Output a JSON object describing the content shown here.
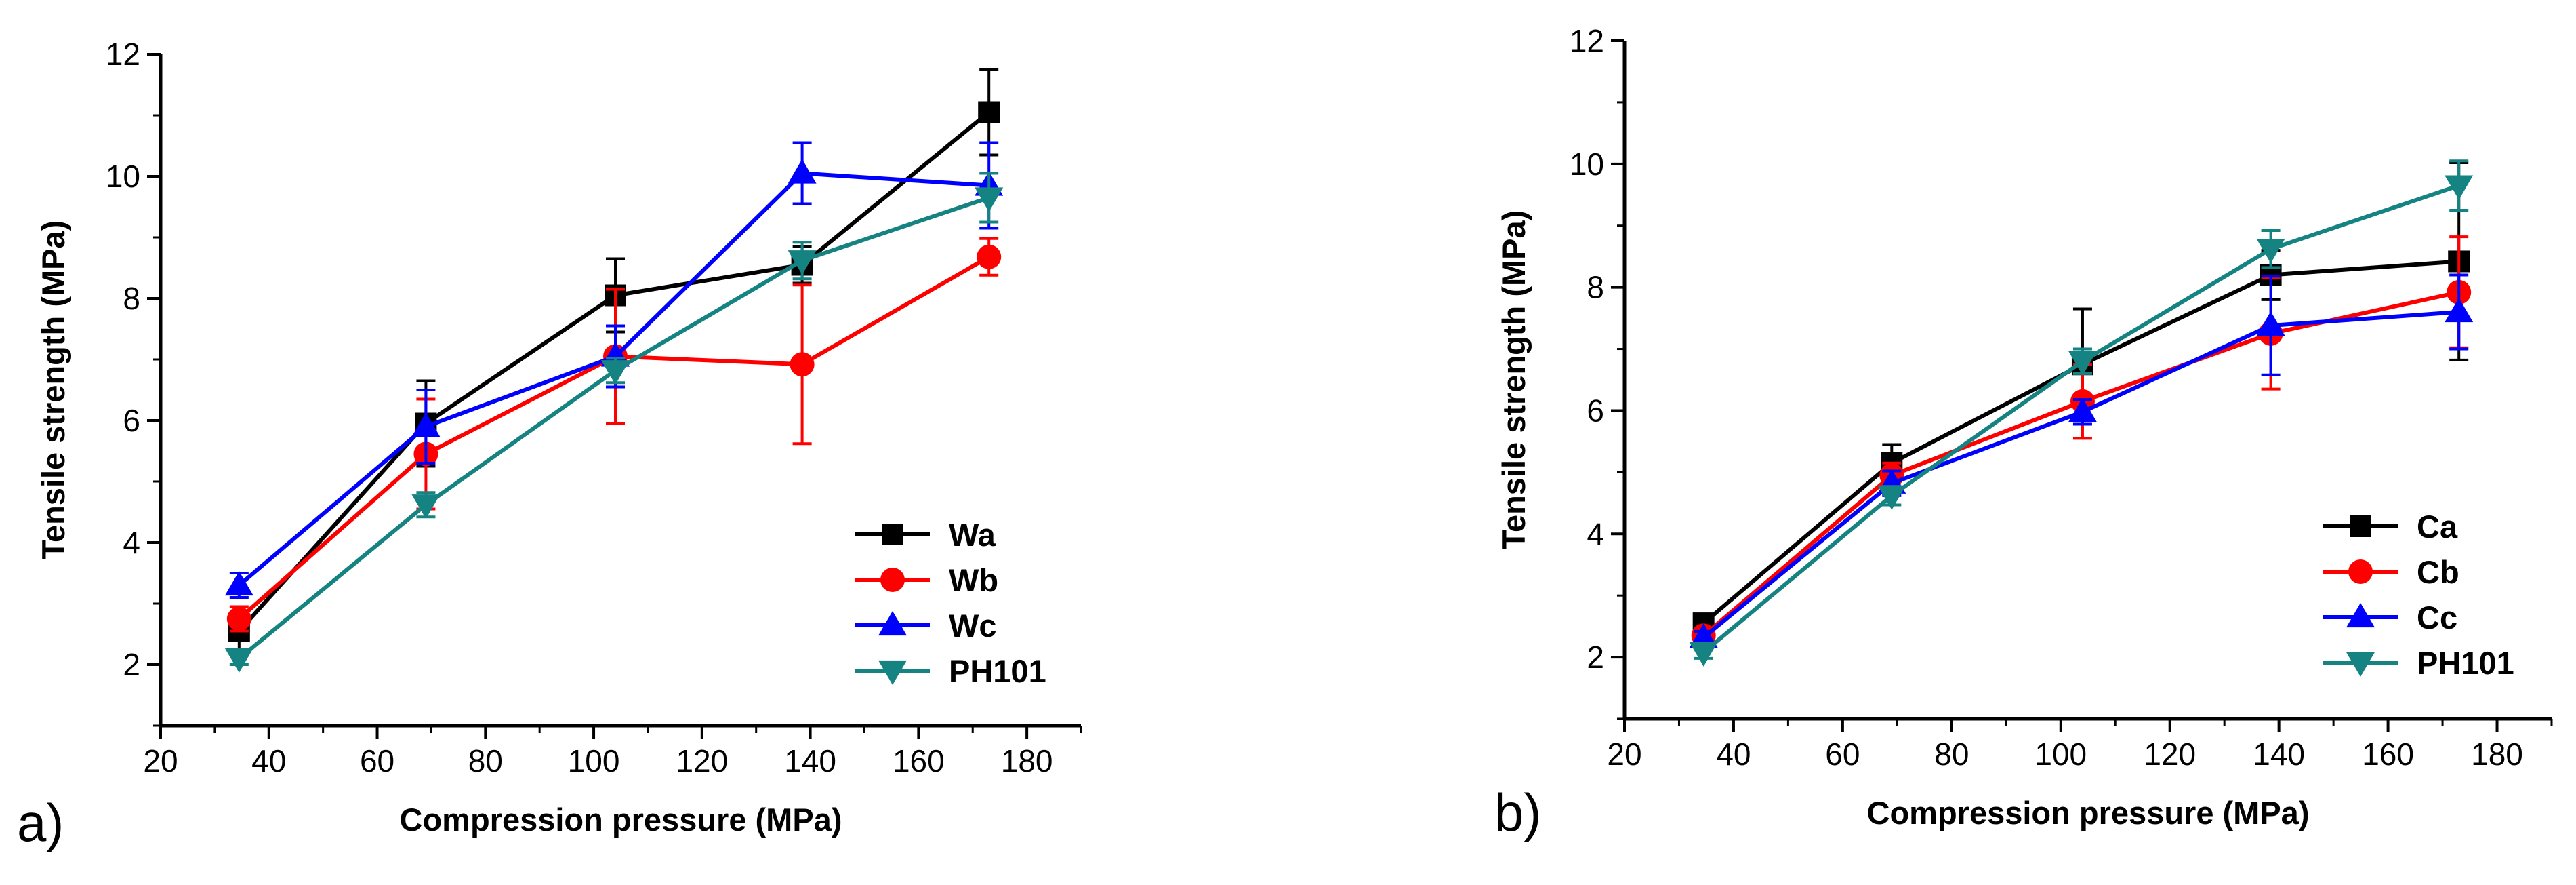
{
  "chart_data": [
    {
      "type": "line",
      "panel_label": "a)",
      "title": "",
      "xlabel": "Compression pressure (MPa)",
      "ylabel": "Tensile strength (MPa)",
      "xlim": [
        20,
        190
      ],
      "ylim": [
        1,
        12
      ],
      "xticks": [
        20,
        40,
        60,
        80,
        100,
        120,
        140,
        160,
        180
      ],
      "yticks": [
        2,
        4,
        6,
        8,
        10,
        12
      ],
      "legend_position": "lower-right",
      "grid": false,
      "x": [
        34.5,
        69,
        104,
        138.5,
        173
      ],
      "series": [
        {
          "name": "Wa",
          "color": "#000000",
          "marker": "square",
          "values": [
            2.55,
            5.95,
            8.05,
            8.55,
            11.05
          ],
          "errors": [
            0.3,
            0.7,
            0.6,
            0.3,
            0.7
          ]
        },
        {
          "name": "Wb",
          "color": "#ff0000",
          "marker": "circle",
          "values": [
            2.75,
            5.45,
            7.05,
            6.92,
            8.68
          ],
          "errors": [
            0.2,
            0.9,
            1.1,
            1.3,
            0.3
          ]
        },
        {
          "name": "Wc",
          "color": "#0000ff",
          "marker": "triangle-up",
          "values": [
            3.3,
            5.9,
            7.05,
            10.05,
            9.85
          ],
          "errors": [
            0.2,
            0.6,
            0.5,
            0.5,
            0.7
          ]
        },
        {
          "name": "PH101",
          "color": "#168383",
          "marker": "triangle-down",
          "values": [
            2.1,
            4.62,
            6.82,
            8.62,
            9.65
          ],
          "errors": [
            0.1,
            0.2,
            0.2,
            0.3,
            0.4
          ]
        }
      ]
    },
    {
      "type": "line",
      "panel_label": "b)",
      "title": "",
      "xlabel": "Compression pressure (MPa)",
      "ylabel": "Tensile strength (MPa)",
      "xlim": [
        20,
        190
      ],
      "ylim": [
        1,
        12
      ],
      "xticks": [
        20,
        40,
        60,
        80,
        100,
        120,
        140,
        160,
        180
      ],
      "yticks": [
        2,
        4,
        6,
        8,
        10,
        12
      ],
      "legend_position": "lower-right",
      "grid": false,
      "x": [
        34.5,
        69,
        104,
        138.5,
        173
      ],
      "series": [
        {
          "name": "Ca",
          "color": "#000000",
          "marker": "square",
          "values": [
            2.55,
            5.15,
            6.75,
            8.2,
            8.42
          ],
          "errors": [
            0.1,
            0.3,
            0.9,
            0.4,
            1.6
          ]
        },
        {
          "name": "Cb",
          "color": "#ff0000",
          "marker": "circle",
          "values": [
            2.35,
            4.95,
            6.15,
            7.25,
            7.92
          ],
          "errors": [
            0.1,
            0.2,
            0.6,
            0.9,
            0.9
          ]
        },
        {
          "name": "Cc",
          "color": "#0000ff",
          "marker": "triangle-up",
          "values": [
            2.32,
            4.82,
            5.98,
            7.38,
            7.6
          ],
          "errors": [
            0.1,
            0.2,
            0.2,
            0.8,
            0.6
          ]
        },
        {
          "name": "PH101",
          "color": "#168383",
          "marker": "triangle-down",
          "values": [
            2.08,
            4.62,
            6.8,
            8.62,
            9.65
          ],
          "errors": [
            0.1,
            0.15,
            0.2,
            0.3,
            0.4
          ]
        }
      ]
    }
  ]
}
